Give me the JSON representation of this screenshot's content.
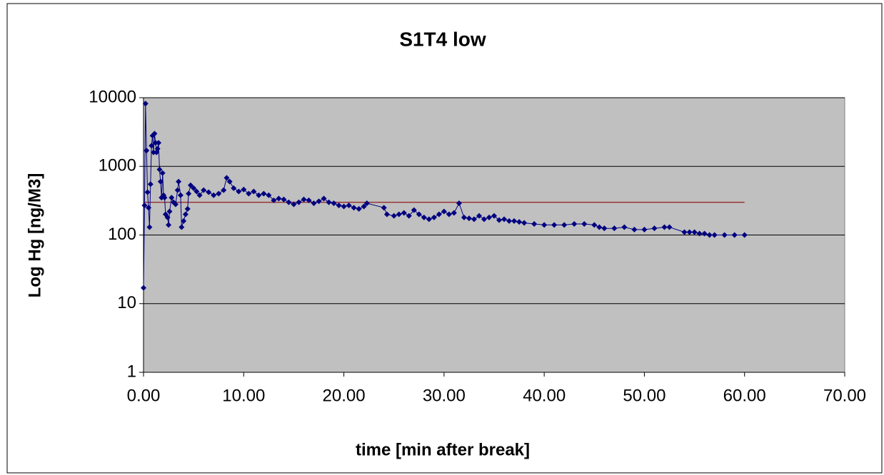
{
  "chart_data": {
    "type": "scatter",
    "title": "S1T4 low",
    "x_label": "time [min after break]",
    "y_label": "Log Hg [ng/M3]",
    "log_y": true,
    "grid": true,
    "xlim": [
      0,
      70
    ],
    "xticks": [
      {
        "value": 0,
        "label": "0.00"
      },
      {
        "value": 10,
        "label": "10.00"
      },
      {
        "value": 20,
        "label": "20.00"
      },
      {
        "value": 30,
        "label": "30.00"
      },
      {
        "value": 40,
        "label": "40.00"
      },
      {
        "value": 50,
        "label": "50.00"
      },
      {
        "value": 60,
        "label": "60.00"
      },
      {
        "value": 70,
        "label": "70.00"
      }
    ],
    "ylim": [
      1,
      10000
    ],
    "yticks": [
      1,
      10,
      100,
      1000,
      10000
    ],
    "series": [
      {
        "color": "#000080",
        "markers": true,
        "x": [
          0,
          0.1,
          0.2,
          0.3,
          0.4,
          0.5,
          0.6,
          0.7,
          0.8,
          0.9,
          1.0,
          1.1,
          1.2,
          1.3,
          1.4,
          1.5,
          1.6,
          1.7,
          1.8,
          1.9,
          2.0,
          2.1,
          2.2,
          2.4,
          2.5,
          2.6,
          2.8,
          3.0,
          3.2,
          3.4,
          3.5,
          3.7,
          3.8,
          4.0,
          4.2,
          4.4,
          4.5,
          4.7,
          5.0,
          5.3,
          5.6,
          6.0,
          6.5,
          7.0,
          7.5,
          8.0,
          8.3,
          8.6,
          9.0,
          9.5,
          10,
          10.5,
          11,
          11.5,
          12,
          12.5,
          13,
          13.5,
          14,
          14.5,
          15,
          15.5,
          16,
          16.5,
          17,
          17.5,
          18,
          18.5,
          19,
          19.5,
          20,
          20.5,
          21,
          21.5,
          22,
          22.3,
          24,
          24.3,
          25,
          25.5,
          26,
          26.5,
          27,
          27.5,
          28,
          28.5,
          29,
          29.5,
          30,
          30.5,
          31,
          31.5,
          32,
          32.5,
          33,
          33.5,
          34,
          34.5,
          35,
          35.5,
          36,
          36.5,
          37,
          37.5,
          38,
          39,
          40,
          41,
          42,
          43,
          44,
          45,
          45.5,
          46,
          47,
          48,
          49,
          50,
          51,
          52,
          52.5,
          54,
          54.5,
          55,
          55.5,
          56,
          56.5,
          57,
          58,
          59,
          60
        ],
        "values": [
          17,
          270,
          8200,
          1700,
          420,
          250,
          130,
          550,
          2000,
          2800,
          1600,
          3000,
          2200,
          1600,
          1800,
          2200,
          900,
          600,
          350,
          800,
          380,
          350,
          200,
          180,
          140,
          220,
          350,
          300,
          280,
          450,
          600,
          380,
          130,
          160,
          200,
          240,
          400,
          530,
          480,
          430,
          380,
          450,
          420,
          380,
          400,
          450,
          680,
          600,
          480,
          430,
          460,
          400,
          430,
          380,
          400,
          380,
          320,
          340,
          330,
          300,
          280,
          300,
          330,
          320,
          290,
          310,
          340,
          300,
          290,
          270,
          260,
          270,
          250,
          240,
          260,
          290,
          250,
          200,
          190,
          200,
          210,
          190,
          230,
          200,
          180,
          170,
          180,
          200,
          220,
          200,
          210,
          290,
          180,
          175,
          170,
          190,
          170,
          180,
          190,
          165,
          170,
          160,
          160,
          155,
          150,
          145,
          140,
          140,
          140,
          145,
          145,
          140,
          130,
          125,
          125,
          130,
          120,
          120,
          125,
          130,
          130,
          110,
          110,
          110,
          105,
          105,
          100,
          100,
          100,
          100,
          100
        ]
      },
      {
        "color": "#993333",
        "markers": false,
        "x": [
          0,
          60
        ],
        "values": [
          300,
          300
        ]
      }
    ]
  }
}
